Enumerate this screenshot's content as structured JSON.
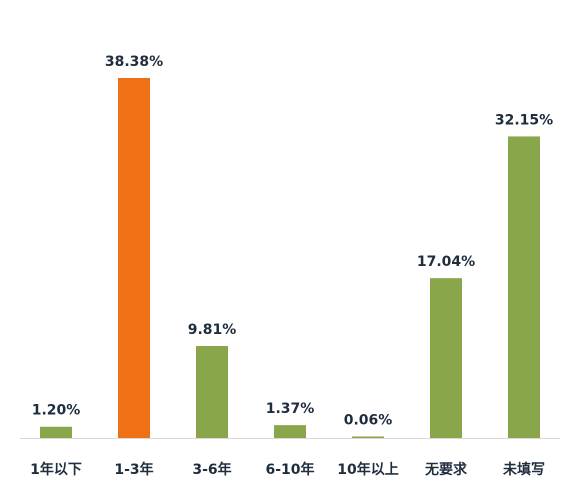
{
  "chart_data": {
    "type": "bar",
    "categories": [
      "1年以下",
      "1-3年",
      "3-6年",
      "6-10年",
      "10年以上",
      "无要求",
      "未填写"
    ],
    "values": [
      1.2,
      38.38,
      9.81,
      1.37,
      0.06,
      17.04,
      32.15
    ],
    "value_labels": [
      "1.20%",
      "38.38%",
      "9.81%",
      "1.37%",
      "0.06%",
      "17.04%",
      "32.15%"
    ],
    "bar_colors": [
      "#8aa64a",
      "#f07016",
      "#8aa64a",
      "#8aa64a",
      "#8aa64a",
      "#8aa64a",
      "#8aa64a"
    ],
    "highlight_index": 1,
    "title": "",
    "xlabel": "",
    "ylabel": "",
    "ylim": [
      0,
      38.38
    ],
    "grid": false,
    "legend": "none",
    "axis_line_color": "#d9d9d9"
  }
}
